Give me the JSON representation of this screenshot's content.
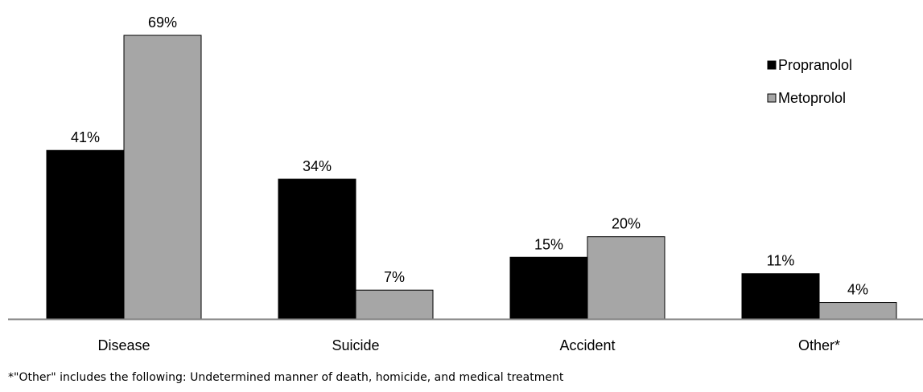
{
  "chart_data": {
    "type": "bar",
    "categories": [
      "Disease",
      "Suicide",
      "Accident",
      "Other*"
    ],
    "series": [
      {
        "name": "Propranolol",
        "values": [
          41,
          34,
          15,
          11
        ],
        "labels": [
          "41%",
          "34%",
          "15%",
          "11%"
        ],
        "color": "#000000"
      },
      {
        "name": "Metoprolol",
        "values": [
          69,
          7,
          20,
          4
        ],
        "labels": [
          "69%",
          "7%",
          "20%",
          "4%"
        ],
        "color": "#a6a6a6"
      }
    ],
    "ylim": [
      0,
      69
    ],
    "title": "",
    "xlabel": "",
    "ylabel": "",
    "grid": false,
    "legend_position": "top-right",
    "axis_color": "#808080"
  },
  "footnote": "*\"Other\" includes the following: Undetermined manner of death, homicide, and medical treatment"
}
